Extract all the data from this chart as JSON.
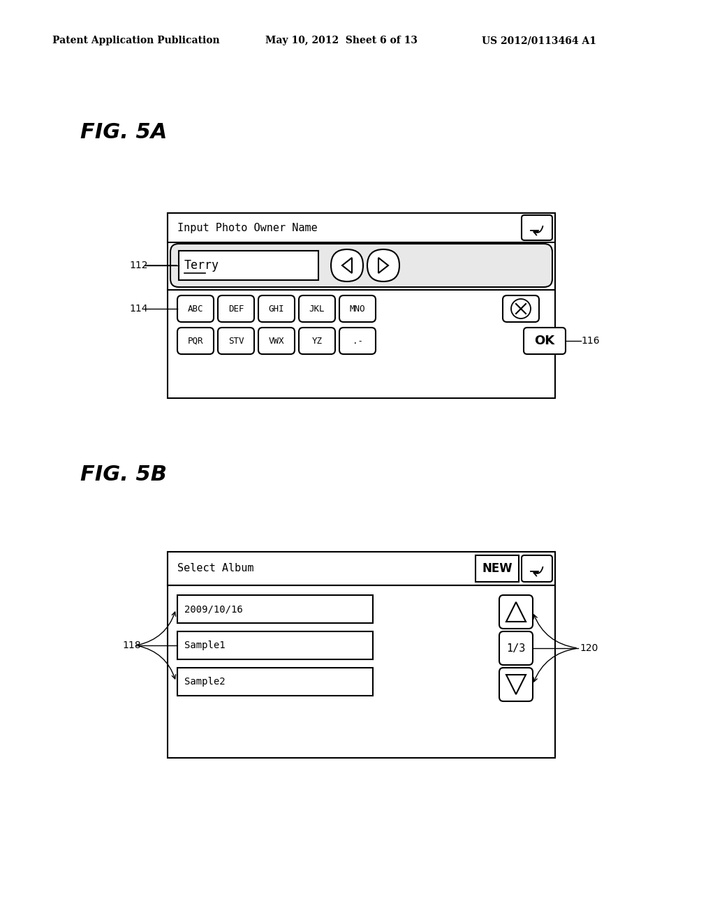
{
  "bg_color": "#ffffff",
  "header_left": "Patent Application Publication",
  "header_mid": "May 10, 2012  Sheet 6 of 13",
  "header_right": "US 2012/0113464 A1",
  "fig5a_label": "FIG. 5A",
  "fig5b_label": "FIG. 5B",
  "fig5a_title": "Input Photo Owner Name",
  "fig5a_text_field": "Terry",
  "fig5a_row1_keys": [
    "ABC",
    "DEF",
    "GHI",
    "JKL",
    "MNO"
  ],
  "fig5a_row2_keys": [
    "PQR",
    "STV",
    "VWX",
    "YZ",
    ".-"
  ],
  "fig5a_label112": "112",
  "fig5a_label114": "114",
  "fig5a_label116": "116",
  "fig5b_title": "Select Album",
  "fig5b_items": [
    "2009/10/16",
    "Sample1",
    "Sample2"
  ],
  "fig5b_label118": "118",
  "fig5b_label120": "120",
  "fig5b_page": "1/3",
  "lw": 1.5
}
